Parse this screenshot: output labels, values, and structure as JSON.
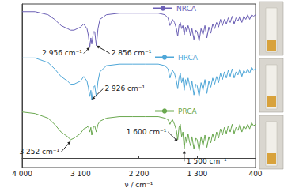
{
  "chart_data": {
    "type": "line",
    "x_label": "ν / cm⁻¹",
    "xlim": [
      4000,
      400
    ],
    "xticks": [
      {
        "value": 4000,
        "label": "4 000"
      },
      {
        "value": 3100,
        "label": "3 100"
      },
      {
        "value": 2200,
        "label": "2 200"
      },
      {
        "value": 1300,
        "label": "1 300"
      },
      400
    ],
    "ylim": [
      -6,
      100
    ],
    "tick_labels": "x",
    "grid": false,
    "x": [
      4000,
      3800,
      3600,
      3500,
      3400,
      3300,
      3252,
      3200,
      3100,
      3050,
      3000,
      2980,
      2956,
      2940,
      2926,
      2900,
      2880,
      2856,
      2830,
      2800,
      2700,
      2500,
      2300,
      2100,
      1900,
      1800,
      1750,
      1720,
      1700,
      1680,
      1650,
      1620,
      1600,
      1580,
      1560,
      1540,
      1520,
      1500,
      1480,
      1460,
      1440,
      1420,
      1400,
      1380,
      1350,
      1320,
      1300,
      1270,
      1240,
      1210,
      1180,
      1150,
      1120,
      1090,
      1060,
      1030,
      1000,
      970,
      940,
      910,
      880,
      850,
      820,
      790,
      760,
      730,
      700,
      670,
      640,
      610,
      580,
      550,
      520,
      490,
      460,
      430,
      400
    ],
    "series": [
      {
        "name": "NRCA",
        "color": "#6b5fb5",
        "values": [
          95,
          95,
          93,
          90,
          86,
          84,
          83,
          83,
          85,
          87,
          84,
          80,
          72,
          78,
          74,
          82,
          82,
          73,
          84,
          90,
          93,
          94,
          94,
          94,
          94,
          93,
          91,
          86,
          88,
          90,
          88,
          84,
          79,
          86,
          88,
          84,
          86,
          80,
          85,
          82,
          86,
          83,
          79,
          84,
          77,
          83,
          82,
          76,
          84,
          80,
          86,
          78,
          85,
          81,
          87,
          84,
          88,
          85,
          90,
          86,
          90,
          87,
          91,
          88,
          92,
          87,
          91,
          89,
          92,
          88,
          92,
          90,
          93,
          90,
          93,
          92,
          93
        ]
      },
      {
        "name": "HRCA",
        "color": "#4fa7d8",
        "values": [
          65,
          65,
          62,
          58,
          53,
          50,
          48,
          48,
          50,
          53,
          50,
          46,
          40,
          44,
          38,
          46,
          47,
          40,
          50,
          56,
          60,
          61,
          61,
          61,
          61,
          60,
          58,
          52,
          55,
          57,
          55,
          50,
          45,
          52,
          55,
          49,
          52,
          44,
          51,
          47,
          52,
          48,
          44,
          50,
          41,
          48,
          47,
          40,
          49,
          44,
          51,
          42,
          50,
          46,
          52,
          48,
          53,
          49,
          55,
          51,
          56,
          52,
          57,
          53,
          58,
          52,
          56,
          54,
          58,
          53,
          57,
          55,
          58,
          55,
          59,
          57,
          58
        ]
      },
      {
        "name": "PRCA",
        "color": "#6aa84f",
        "values": [
          30,
          29,
          26,
          22,
          17,
          14,
          12,
          13,
          16,
          19,
          20,
          21,
          17,
          20,
          15,
          20,
          21,
          17,
          22,
          24,
          26,
          27,
          27,
          27,
          27,
          26,
          25,
          22,
          24,
          25,
          22,
          18,
          12,
          20,
          22,
          14,
          17,
          6,
          14,
          10,
          16,
          11,
          8,
          14,
          6,
          13,
          12,
          5,
          14,
          8,
          15,
          7,
          14,
          10,
          16,
          11,
          17,
          13,
          19,
          15,
          20,
          16,
          21,
          17,
          22,
          16,
          20,
          18,
          22,
          17,
          21,
          19,
          22,
          19,
          23,
          21,
          22
        ]
      }
    ],
    "annotations": [
      {
        "text": "2 956 cm⁻¹",
        "x": 2956,
        "y": 72,
        "text_x": 3050,
        "text_y": 68
      },
      {
        "text": "2 856 cm⁻¹",
        "x": 2856,
        "y": 73,
        "text_x": 2650,
        "text_y": 68
      },
      {
        "text": "2 926 cm⁻¹",
        "x": 2926,
        "y": 38,
        "text_x": 2750,
        "text_y": 45
      },
      {
        "text": "3 252 cm⁻¹",
        "x": 3252,
        "y": 11,
        "text_x": 3400,
        "text_y": 4
      },
      {
        "text": "1 600 cm⁻¹",
        "x": 1600,
        "y": 11,
        "text_x": 1750,
        "text_y": 17
      },
      {
        "text": "1 500 cm⁻¹",
        "x": 1500,
        "y": 5,
        "text_x": 1500,
        "text_y": -2
      }
    ]
  }
}
